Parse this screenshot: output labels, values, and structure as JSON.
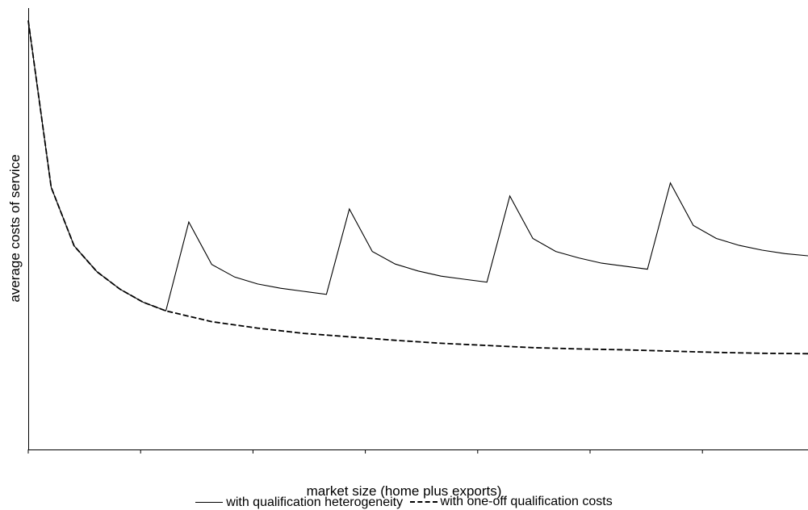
{
  "chart_data": {
    "type": "line",
    "title": "",
    "xlabel": "market size (home plus exports)",
    "ylabel": "average costs of service",
    "x_ticks": 8,
    "xlim": [
      0,
      34
    ],
    "ylim": [
      0,
      10
    ],
    "grid": false,
    "legend_position": "bottom",
    "series": [
      {
        "name": "with qualification heterogeneity",
        "style": "solid",
        "color": "#000000",
        "points": [
          [
            0,
            9.9
          ],
          [
            1,
            6.05
          ],
          [
            2,
            4.7
          ],
          [
            3,
            4.1
          ],
          [
            4,
            3.7
          ],
          [
            5,
            3.4
          ],
          [
            6,
            3.2
          ],
          [
            7,
            5.25
          ],
          [
            8,
            4.27
          ],
          [
            9,
            3.98
          ],
          [
            10,
            3.82
          ],
          [
            11,
            3.72
          ],
          [
            12,
            3.65
          ],
          [
            13,
            3.58
          ],
          [
            14,
            5.55
          ],
          [
            15,
            4.57
          ],
          [
            16,
            4.28
          ],
          [
            17,
            4.12
          ],
          [
            18,
            4.0
          ],
          [
            19,
            3.93
          ],
          [
            20,
            3.86
          ],
          [
            21,
            5.85
          ],
          [
            22,
            4.87
          ],
          [
            23,
            4.57
          ],
          [
            24,
            4.42
          ],
          [
            25,
            4.3
          ],
          [
            26,
            4.23
          ],
          [
            27,
            4.16
          ],
          [
            28,
            6.15
          ],
          [
            29,
            5.17
          ],
          [
            30,
            4.87
          ],
          [
            31,
            4.71
          ],
          [
            32,
            4.6
          ],
          [
            33,
            4.52
          ],
          [
            34,
            4.47
          ]
        ]
      },
      {
        "name": "with one-off qualification costs",
        "style": "dashed",
        "color": "#000000",
        "points": [
          [
            0,
            9.9
          ],
          [
            1,
            6.05
          ],
          [
            2,
            4.7
          ],
          [
            3,
            4.1
          ],
          [
            4,
            3.7
          ],
          [
            5,
            3.4
          ],
          [
            6,
            3.2
          ],
          [
            8,
            2.95
          ],
          [
            10,
            2.8
          ],
          [
            12,
            2.68
          ],
          [
            14,
            2.6
          ],
          [
            16,
            2.52
          ],
          [
            18,
            2.45
          ],
          [
            20,
            2.4
          ],
          [
            22,
            2.35
          ],
          [
            24,
            2.32
          ],
          [
            26,
            2.3
          ],
          [
            28,
            2.27
          ],
          [
            30,
            2.24
          ],
          [
            32,
            2.22
          ],
          [
            34,
            2.21
          ]
        ]
      }
    ]
  }
}
